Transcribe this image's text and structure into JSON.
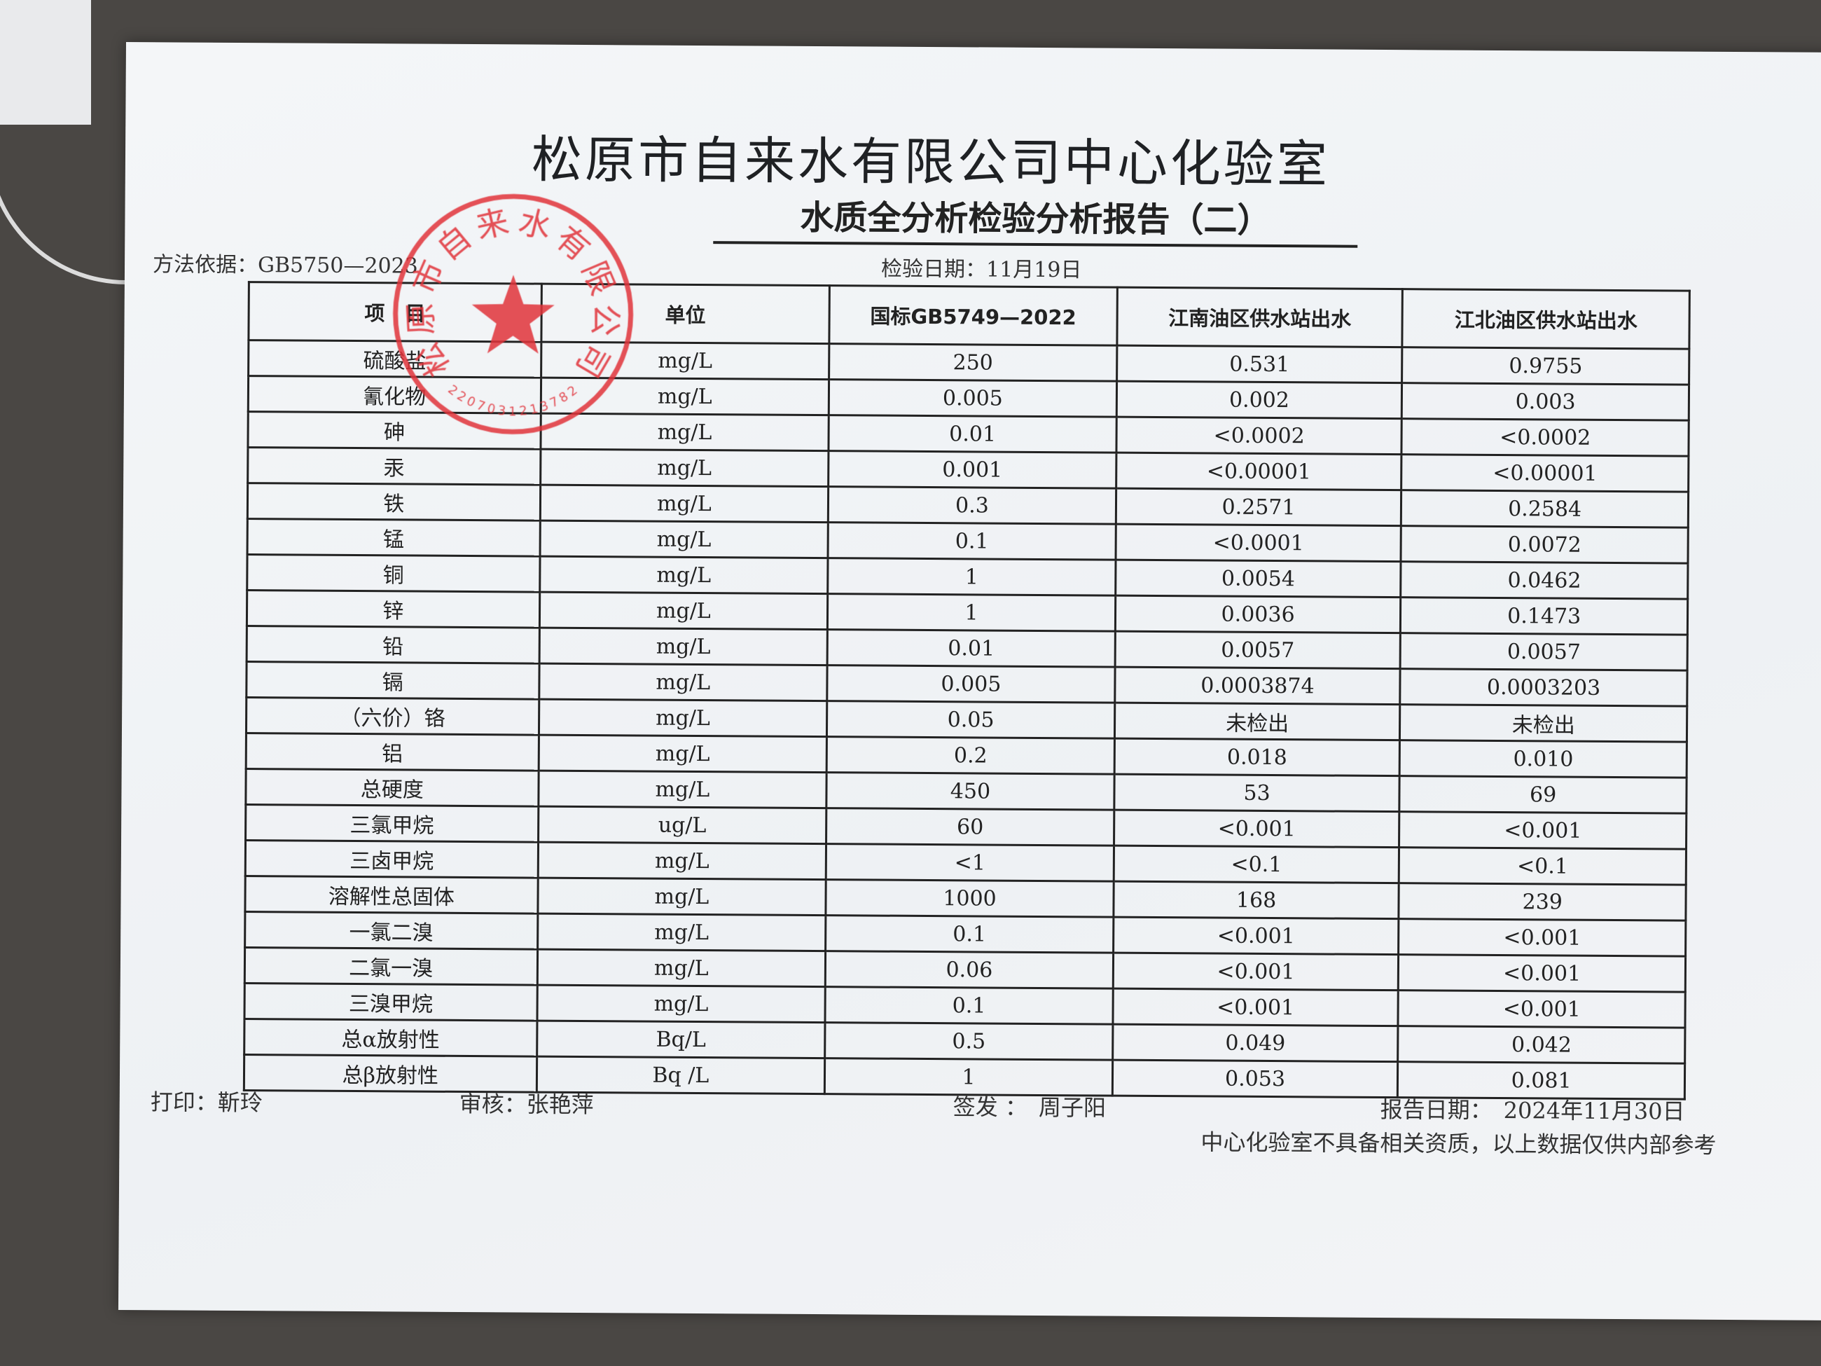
{
  "header": {
    "title": "松原市自来水有限公司中心化验室",
    "subtitle": "水质全分析检验分析报告（二）",
    "method": "方法依据：GB5750—2023",
    "test_date": "检验日期：11月19日"
  },
  "stamp": {
    "text": "松原市自来水有限公司",
    "number": "2207031213782",
    "color": "#e0323a"
  },
  "table": {
    "columns": [
      "项　目",
      "单位",
      "国标GB5749—2022",
      "江南油区供水站出水",
      "江北油区供水站出水"
    ],
    "rows": [
      [
        "硫酸盐",
        "mg/L",
        "250",
        "0.531",
        "0.9755"
      ],
      [
        "氰化物",
        "mg/L",
        "0.005",
        "0.002",
        "0.003"
      ],
      [
        "砷",
        "mg/L",
        "0.01",
        "<0.0002",
        "<0.0002"
      ],
      [
        "汞",
        "mg/L",
        "0.001",
        "<0.00001",
        "<0.00001"
      ],
      [
        "铁",
        "mg/L",
        "0.3",
        "0.2571",
        "0.2584"
      ],
      [
        "锰",
        "mg/L",
        "0.1",
        "<0.0001",
        "0.0072"
      ],
      [
        "铜",
        "mg/L",
        "1",
        "0.0054",
        "0.0462"
      ],
      [
        "锌",
        "mg/L",
        "1",
        "0.0036",
        "0.1473"
      ],
      [
        "铅",
        "mg/L",
        "0.01",
        "0.0057",
        "0.0057"
      ],
      [
        "镉",
        "mg/L",
        "0.005",
        "0.0003874",
        "0.0003203"
      ],
      [
        "（六价）铬",
        "mg/L",
        "0.05",
        "未检出",
        "未检出"
      ],
      [
        "铝",
        "mg/L",
        "0.2",
        "0.018",
        "0.010"
      ],
      [
        "总硬度",
        "mg/L",
        "450",
        "53",
        "69"
      ],
      [
        "三氯甲烷",
        "ug/L",
        "60",
        "<0.001",
        "<0.001"
      ],
      [
        "三卤甲烷",
        "mg/L",
        "<1",
        "<0.1",
        "<0.1"
      ],
      [
        "溶解性总固体",
        "mg/L",
        "1000",
        "168",
        "239"
      ],
      [
        "一氯二溴",
        "mg/L",
        "0.1",
        "<0.001",
        "<0.001"
      ],
      [
        "二氯一溴",
        "mg/L",
        "0.06",
        "<0.001",
        "<0.001"
      ],
      [
        "三溴甲烷",
        "mg/L",
        "0.1",
        "<0.001",
        "<0.001"
      ],
      [
        "总α放射性",
        "Bq/L",
        "0.5",
        "0.049",
        "0.042"
      ],
      [
        "总β放射性",
        "Bq /L",
        "1",
        "0.053",
        "0.081"
      ]
    ]
  },
  "footer": {
    "printed_by": "打印：靳玲",
    "reviewed_by": "审核：张艳萍",
    "issued_by": "签发 ：　周子阳",
    "report_date": "报告日期：　2024年11月30日",
    "disclaimer": "中心化验室不具备相关资质，以上数据仅供内部参考"
  }
}
